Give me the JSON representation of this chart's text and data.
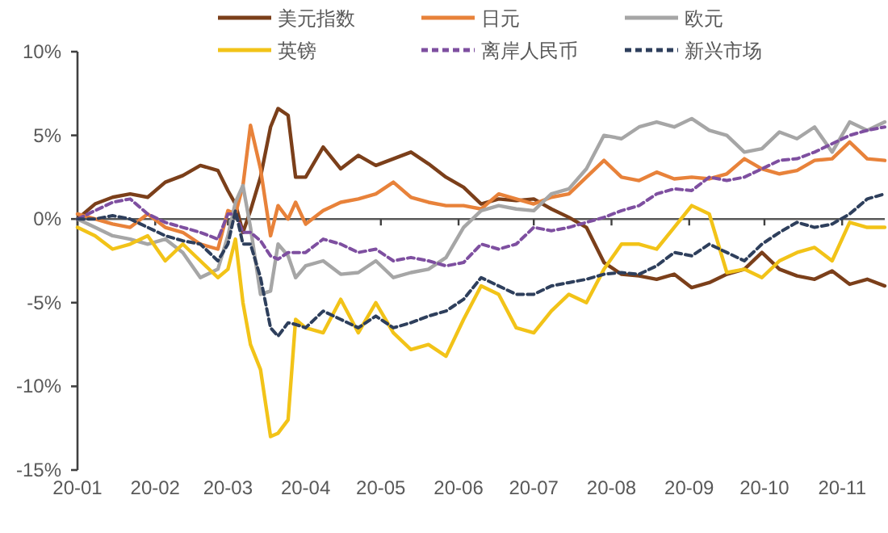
{
  "chart_data": {
    "type": "line",
    "legend": "top",
    "x": [
      "--01-01",
      "--01-08",
      "--01-15",
      "--01-22",
      "--01-29",
      "--02-05",
      "--02-12",
      "--02-19",
      "--02-26",
      "--03-01",
      "--03-04",
      "--03-07",
      "--03-10",
      "--03-14",
      "--03-18",
      "--03-21",
      "--03-25",
      "--03-28",
      "--04-01",
      "--04-08",
      "--04-15",
      "--04-22",
      "--04-29",
      "--05-06",
      "--05-13",
      "--05-20",
      "--05-27",
      "--06-03",
      "--06-10",
      "--06-17",
      "--06-24",
      "--07-01",
      "--07-08",
      "--07-15",
      "--07-22",
      "--07-29",
      "--08-05",
      "--08-12",
      "--08-19",
      "--08-26",
      "--09-02",
      "--09-09",
      "--09-16",
      "--09-23",
      "--09-30",
      "--10-07",
      "--10-14",
      "--10-21",
      "--10-28",
      "--11-04",
      "--11-11",
      "--11-18"
    ],
    "xlim": [
      "--01-01",
      "--11-18"
    ],
    "xticks": [
      {
        "value": "--01-01",
        "label": "20-01"
      },
      {
        "value": "--02-01",
        "label": "20-02"
      },
      {
        "value": "--03-01",
        "label": "20-03"
      },
      {
        "value": "--04-01",
        "label": "20-04"
      },
      {
        "value": "--05-01",
        "label": "20-05"
      },
      {
        "value": "--06-01",
        "label": "20-06"
      },
      {
        "value": "--07-01",
        "label": "20-07"
      },
      {
        "value": "--08-01",
        "label": "20-08"
      },
      {
        "value": "--09-01",
        "label": "20-09"
      },
      {
        "value": "--10-01",
        "label": "20-10"
      },
      {
        "value": "--11-01",
        "label": "20-11"
      }
    ],
    "ylim": [
      -15,
      10
    ],
    "yticks": [
      {
        "value": 10,
        "label": "10%"
      },
      {
        "value": 5,
        "label": "5%"
      },
      {
        "value": 0,
        "label": "0%"
      },
      {
        "value": -5,
        "label": "-5%"
      },
      {
        "value": -10,
        "label": "-10%"
      },
      {
        "value": -15,
        "label": "-15%"
      }
    ],
    "ref_lines": [
      {
        "axis": "y",
        "value": 0,
        "color": "#595959"
      }
    ],
    "series": [
      {
        "name": "美元指数",
        "color": "#7b3f1a",
        "line_style": "solid",
        "values": [
          0,
          0.9,
          1.3,
          1.5,
          1.3,
          2.2,
          2.6,
          3.2,
          2.9,
          1.7,
          0.9,
          -0.8,
          0.5,
          2.5,
          5.5,
          6.6,
          6.2,
          2.5,
          2.5,
          4.3,
          3.0,
          3.8,
          3.2,
          3.6,
          4.0,
          3.3,
          2.5,
          1.9,
          0.9,
          1.2,
          1.1,
          1.2,
          0.6,
          0.1,
          -0.5,
          -2.6,
          -3.3,
          -3.4,
          -3.6,
          -3.3,
          -4.1,
          -3.8,
          -3.3,
          -3.0,
          -2.0,
          -3.0,
          -3.4,
          -3.6,
          -3.1,
          -3.9,
          -3.6,
          -4.0
        ]
      },
      {
        "name": "日元",
        "color": "#e8823a",
        "line_style": "solid",
        "values": [
          0.3,
          0,
          -0.3,
          -0.5,
          0.3,
          -0.5,
          -0.8,
          -1.5,
          -1.8,
          0.5,
          0.3,
          2.0,
          5.6,
          3.0,
          -1.0,
          0.8,
          0,
          1.0,
          -0.3,
          0.5,
          1.0,
          1.2,
          1.5,
          2.2,
          1.3,
          1.0,
          0.8,
          0.8,
          0.6,
          1.5,
          1.2,
          0.9,
          1.3,
          1.5,
          2.5,
          3.5,
          2.5,
          2.3,
          2.8,
          2.4,
          2.5,
          2.4,
          2.7,
          3.6,
          3.0,
          2.7,
          2.9,
          3.5,
          3.6,
          4.6,
          3.6,
          3.5
        ]
      },
      {
        "name": "欧元",
        "color": "#a6a6a6",
        "line_style": "solid",
        "values": [
          0,
          -0.5,
          -1.0,
          -1.2,
          -1.5,
          -1.2,
          -2.0,
          -3.5,
          -3.0,
          -1.0,
          1.0,
          2.0,
          -0.5,
          -4.5,
          -4.3,
          -1.5,
          -2.2,
          -3.5,
          -2.8,
          -2.5,
          -3.3,
          -3.2,
          -2.5,
          -3.5,
          -3.2,
          -3.0,
          -2.3,
          -0.5,
          0.5,
          0.8,
          0.6,
          0.5,
          1.5,
          1.8,
          3.0,
          5.0,
          4.8,
          5.5,
          5.8,
          5.5,
          6.0,
          5.3,
          5.0,
          4.0,
          4.2,
          5.2,
          4.8,
          5.5,
          4.0,
          5.8,
          5.3,
          5.8
        ]
      },
      {
        "name": "英镑",
        "color": "#f2c318",
        "line_style": "solid",
        "values": [
          -0.5,
          -1.0,
          -1.8,
          -1.5,
          -1.0,
          -2.5,
          -1.5,
          -2.5,
          -3.5,
          -3.0,
          -1.2,
          -5.0,
          -7.5,
          -9.0,
          -13.0,
          -12.8,
          -12.0,
          -6.0,
          -6.5,
          -6.8,
          -4.8,
          -6.8,
          -5.0,
          -6.8,
          -7.8,
          -7.5,
          -8.2,
          -6.0,
          -4.0,
          -4.5,
          -6.5,
          -6.8,
          -5.5,
          -4.5,
          -5.0,
          -3.0,
          -1.5,
          -1.5,
          -1.8,
          -0.5,
          0.8,
          0.3,
          -3.2,
          -3.0,
          -3.5,
          -2.5,
          -2.0,
          -1.7,
          -2.5,
          -0.2,
          -0.5,
          -0.5
        ]
      },
      {
        "name": "离岸人民币",
        "color": "#7e4fa0",
        "line_style": "dashed",
        "values": [
          0,
          0.5,
          1.0,
          1.2,
          0.3,
          -0.2,
          -0.5,
          -0.8,
          -1.2,
          0.3,
          0.3,
          -0.8,
          -0.8,
          -1.3,
          -2.2,
          -2.4,
          -2.0,
          -2.0,
          -2.0,
          -1.2,
          -1.5,
          -2.0,
          -1.8,
          -2.5,
          -2.3,
          -2.5,
          -2.8,
          -2.6,
          -1.5,
          -1.8,
          -1.5,
          -0.5,
          -0.7,
          -0.5,
          -0.2,
          0.1,
          0.5,
          0.8,
          1.5,
          1.8,
          1.7,
          2.5,
          2.3,
          2.5,
          3.0,
          3.5,
          3.6,
          4.0,
          4.5,
          5.0,
          5.3,
          5.5
        ]
      },
      {
        "name": "新兴市场",
        "color": "#2e3f5c",
        "line_style": "dashed",
        "values": [
          0,
          0,
          0.2,
          0,
          -0.5,
          -1.0,
          -1.3,
          -1.5,
          -2.5,
          -1.5,
          0.5,
          -1.5,
          -1.5,
          -3.5,
          -6.5,
          -7.0,
          -6.2,
          -6.3,
          -6.5,
          -5.5,
          -6.0,
          -6.5,
          -5.8,
          -6.5,
          -6.2,
          -5.8,
          -5.5,
          -4.8,
          -3.5,
          -4.0,
          -4.5,
          -4.5,
          -4.0,
          -3.8,
          -3.6,
          -3.3,
          -3.2,
          -3.3,
          -2.8,
          -2.0,
          -2.2,
          -1.5,
          -2.0,
          -2.5,
          -1.5,
          -0.8,
          -0.2,
          -0.5,
          -0.3,
          0.3,
          1.2,
          1.5
        ]
      }
    ]
  }
}
